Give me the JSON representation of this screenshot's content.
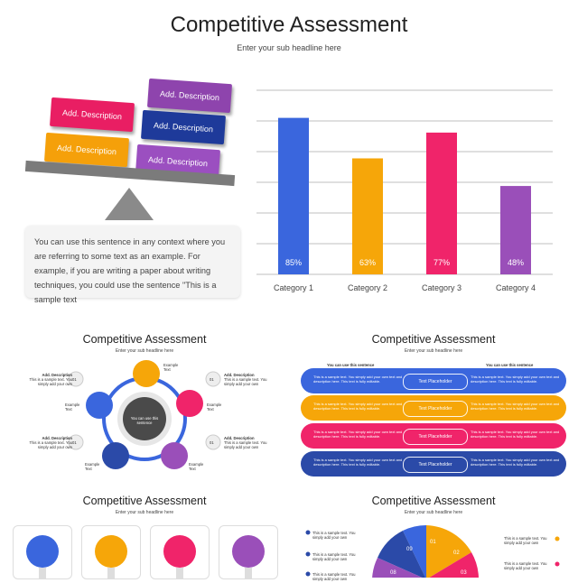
{
  "main": {
    "title": "Competitive Assessment",
    "subtitle": "Enter your sub headline here",
    "scale_boxes": [
      {
        "label": "Add. Description",
        "color": "#8e44ad"
      },
      {
        "label": "Add. Description",
        "color": "#e91e63"
      },
      {
        "label": "Add. Description",
        "color": "#1e3a9a"
      },
      {
        "label": "Add. Description",
        "color": "#f5a00a"
      },
      {
        "label": "Add. Description",
        "color": "#9b4fc0"
      }
    ],
    "body_text": "You can use this sentence in any context where you are referring to some text as an example. For example, if you are writing a paper about writing techniques, you could use the sentence \"This is a sample text"
  },
  "chart_data": {
    "type": "bar",
    "categories": [
      "Category 1",
      "Category 2",
      "Category 3",
      "Category 4"
    ],
    "values": [
      85,
      63,
      77,
      48
    ],
    "data_labels": [
      "85%",
      "63%",
      "77%",
      "48%"
    ],
    "colors": [
      "#3a66dd",
      "#f6a609",
      "#f0246a",
      "#9a4fb9"
    ],
    "ylim": [
      0,
      100
    ],
    "grid": true
  },
  "thumb_cycle": {
    "title": "Competitive Assessment",
    "subtitle": "Enter your sub headline here",
    "center_text": "You can use this sentence",
    "desc_title": "Add. Description",
    "desc_body": "This is a sample text. You simply add your own",
    "num": "01",
    "example": "Example Text"
  },
  "thumb_pills": {
    "title": "Competitive Assessment",
    "subtitle": "Enter your sub headline here",
    "col_header": "You can use this sentence",
    "placeholder": "Text Placeholder",
    "body": "This is a sample text. You simply add your own text and description here. This text is fully editable.",
    "colors": [
      "#3a66dd",
      "#f6a609",
      "#f0246a",
      "#2b4aa8"
    ]
  },
  "thumb_cards": {
    "title": "Competitive Assessment",
    "subtitle": "Enter your sub headline here",
    "colors": [
      "#3a66dd",
      "#f6a609",
      "#f0246a",
      "#9a4fb9"
    ]
  },
  "thumb_pie": {
    "title": "Competitive Assessment",
    "subtitle": "Enter your sub headline here",
    "item_text": "This is a sample text. You simply add your own",
    "numbers": [
      "09",
      "01",
      "02",
      "08",
      "03"
    ]
  }
}
